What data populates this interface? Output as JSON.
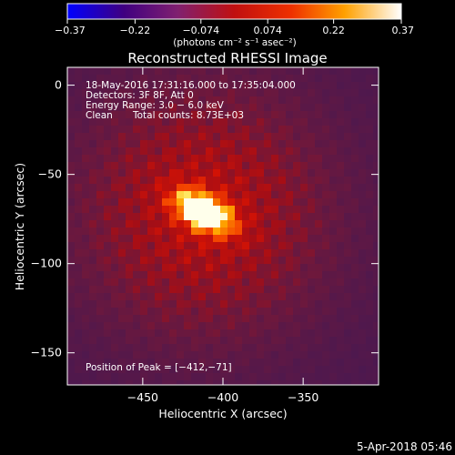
{
  "chart_data": {
    "type": "heatmap",
    "title": "Reconstructed RHESSI Image",
    "xlabel": "Heliocentric X (arcsec)",
    "ylabel": "Heliocentric Y (arcsec)",
    "xlim": [
      -497,
      -303
    ],
    "ylim": [
      -168,
      10
    ],
    "x_ticks": [
      -450,
      -400,
      -350
    ],
    "x_tick_labels": [
      "−450",
      "−400",
      "−350"
    ],
    "y_ticks": [
      0,
      -50,
      -100,
      -150
    ],
    "y_tick_labels": [
      "0",
      "−50",
      "−100",
      "−150"
    ],
    "colorbar": {
      "min": -0.37,
      "max": 0.37,
      "ticks": [
        -0.37,
        -0.22,
        -0.074,
        0.074,
        0.22,
        0.37
      ],
      "tick_labels": [
        "−0.37",
        "−0.22",
        "−0.074",
        "0.074",
        "0.22",
        "0.37"
      ],
      "units": "(photons cm⁻² s⁻¹ asec⁻²)"
    },
    "peak": {
      "x": -412,
      "y": -71,
      "value": 0.37
    },
    "source_angle_deg": 28,
    "annotations": {
      "time_range": "18-May-2016 17:31:16.000 to 17:35:04.000",
      "detectors": "Detectors: 3F 8F, Att 0",
      "energy": "Energy Range: 3.0 − 6.0 keV",
      "clean": "Clean",
      "counts": "Total counts: 8.73E+03",
      "peak_text": "Position of Peak = [−412,−71]"
    }
  },
  "footer": {
    "date": "5-Apr-2018 05:46"
  }
}
